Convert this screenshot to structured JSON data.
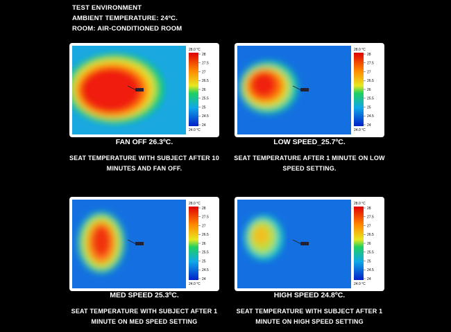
{
  "header": {
    "lines": [
      "TEST ENVIRONMENT",
      "AMBIENT TEMPERATURE: 24ºC.",
      "ROOM: AIR-CONDITIONED ROOM"
    ]
  },
  "scale": {
    "top": "28.0 °C",
    "ticks": [
      "28",
      "27.5",
      "27",
      "26.5",
      "26",
      "25.5",
      "25",
      "24.5",
      "24"
    ],
    "bottom": "24.0 °C"
  },
  "panels": [
    {
      "caption": "FAN OFF 26.3ºC.",
      "description": [
        "SEAT TEMPERATURE WITH SUBJECT AFTER 10",
        "MINUTES AND FAN OFF."
      ]
    },
    {
      "caption": "LOW SPEED_25.7ºC.",
      "description": [
        "SEAT TEMPERATURE AFTER 1 MINUTE ON LOW",
        "SPEED SETTING."
      ]
    },
    {
      "caption": "MED SPEED 25.3ºC.",
      "description": [
        "SEAT TEMPERATURE WITH SUBJECT AFTER 1",
        "MINUTE ON MED SPEED SETTING"
      ]
    },
    {
      "caption": "HIGH SPEED 24.8ºC.",
      "description": [
        "SEAT TEMPERATURE WITH SUBJECT AFTER 1",
        "MINUTE ON HIGH SPEED SETTING"
      ]
    }
  ]
}
